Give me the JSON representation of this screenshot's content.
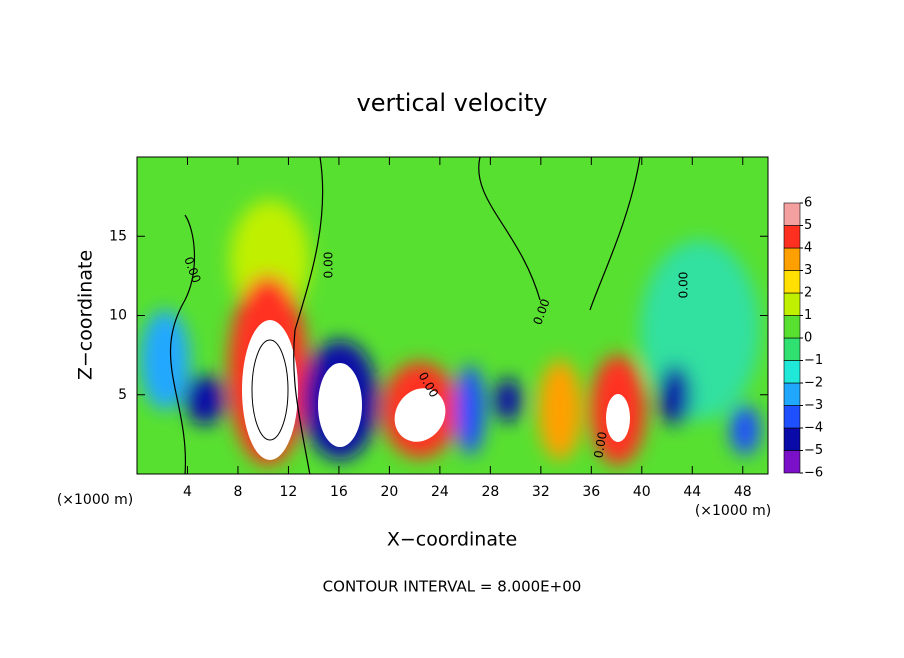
{
  "chart_data": {
    "type": "contour",
    "title": "vertical velocity",
    "x_label": "X−coordinate",
    "y_label": "Z−coordinate",
    "x_unit": "(×1000 m)",
    "y_unit": "(×1000 m)",
    "footnote": "CONTOUR INTERVAL = 8.000E+00",
    "contour_labels": [
      "0.00",
      "0.00",
      "0.00",
      "0.00",
      "0.00",
      "0.00"
    ],
    "xlim": [
      0,
      50
    ],
    "xticks": [
      4,
      8,
      12,
      16,
      20,
      24,
      28,
      32,
      36,
      40,
      44,
      48
    ],
    "ylim": [
      0,
      20
    ],
    "yticks": [
      5,
      10,
      15
    ],
    "colorbar": {
      "levels": [
        {
          "value": -6,
          "label": "−6"
        },
        {
          "value": -5,
          "label": "−5"
        },
        {
          "value": -4,
          "label": "−4"
        },
        {
          "value": -3,
          "label": "−3"
        },
        {
          "value": -2,
          "label": "−2"
        },
        {
          "value": -1,
          "label": "−1"
        },
        0,
        1,
        2,
        3,
        4,
        5,
        6
      ],
      "colors": [
        "#7a10c8",
        "#0a0aa8",
        "#1e50ff",
        "#20a8ff",
        "#20e8d8",
        "#30e070",
        "#58e030",
        "#c0f000",
        "#ffe000",
        "#ffa000",
        "#ff3020",
        "#f4a0a0"
      ]
    }
  }
}
